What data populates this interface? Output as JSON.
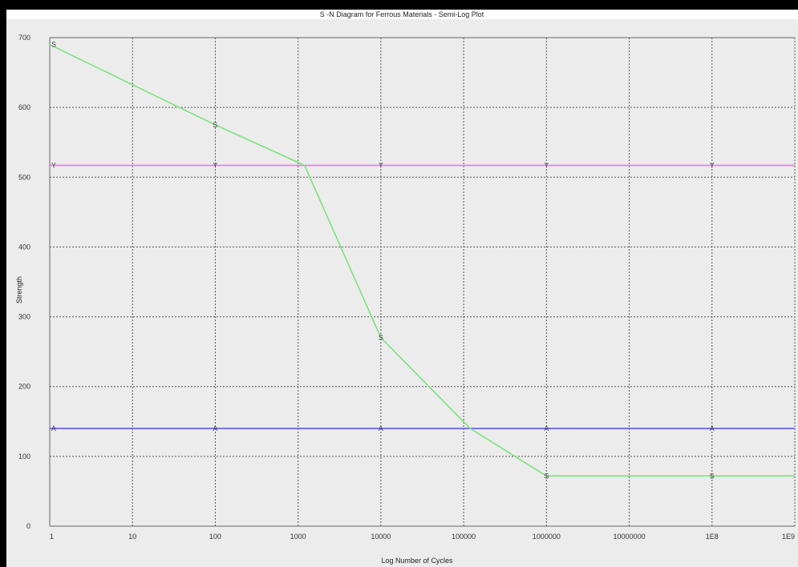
{
  "chart_data": {
    "type": "line",
    "title": "S -N Diagram for Ferrous Materials - Semi-Log Plot",
    "xlabel": "Log Number of Cycles",
    "ylabel": "Strength",
    "x_scale": "log",
    "xlim": [
      1,
      1000000000
    ],
    "ylim": [
      0,
      700
    ],
    "x_ticks": [
      1,
      10,
      100,
      1000,
      10000,
      100000,
      1000000,
      10000000,
      100000000,
      1000000000
    ],
    "x_tick_labels": [
      "1",
      "10",
      "100",
      "1000",
      "10000",
      "100000",
      "1000000",
      "10000000",
      "1E8",
      "1E9"
    ],
    "y_ticks": [
      0,
      100,
      200,
      300,
      400,
      500,
      600,
      700
    ],
    "y_tick_labels": [
      "0",
      "100",
      "200",
      "300",
      "400",
      "500",
      "600",
      "700"
    ],
    "grid": true,
    "series": [
      {
        "marker_label": "S",
        "color": "#7be37b",
        "points": [
          [
            1,
            690
          ],
          [
            100,
            575
          ],
          [
            1200,
            517
          ],
          [
            10000,
            270
          ],
          [
            120000,
            140
          ],
          [
            1000000,
            72
          ],
          [
            1000000000,
            72
          ]
        ],
        "marker_x": [
          1,
          100,
          10000,
          1000000,
          100000000
        ]
      },
      {
        "marker_label": "Y",
        "color": "#dd88dd",
        "points": [
          [
            1,
            517
          ],
          [
            1000000000,
            517
          ]
        ],
        "marker_x": [
          1,
          100,
          10000,
          1000000,
          100000000
        ]
      },
      {
        "marker_label": "A",
        "color": "#6666ee",
        "points": [
          [
            1,
            140
          ],
          [
            1000000000,
            140
          ]
        ],
        "marker_x": [
          1,
          100,
          10000,
          1000000,
          100000000
        ]
      }
    ]
  }
}
